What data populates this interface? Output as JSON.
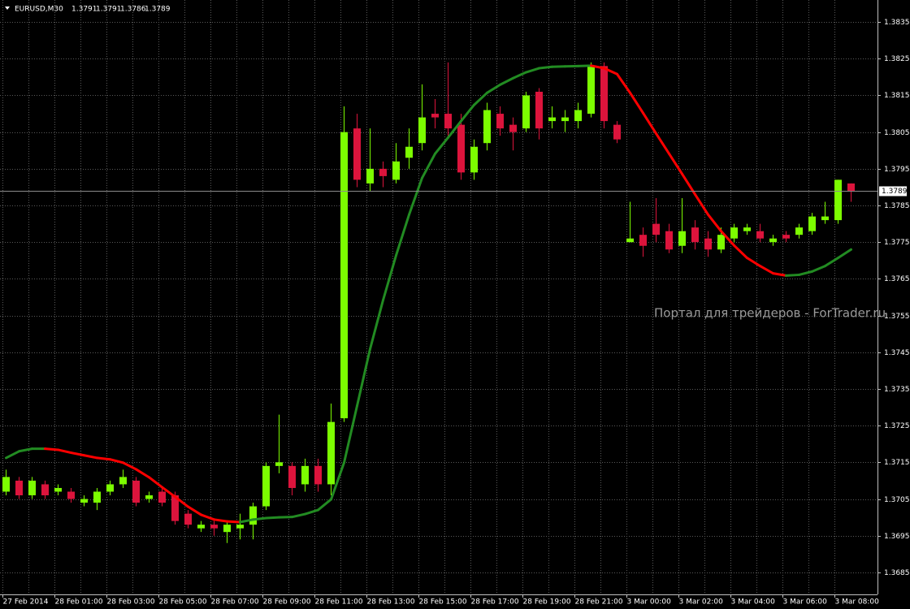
{
  "chart_data": {
    "type": "candlestick",
    "title": "EURUSD,M30",
    "categories": [
      "27 Feb 2014",
      null,
      null,
      null,
      "28 Feb 01:00",
      null,
      null,
      null,
      "28 Feb 03:00",
      null,
      null,
      null,
      "28 Feb 05:00",
      null,
      null,
      null,
      "28 Feb 07:00",
      null,
      null,
      null,
      "28 Feb 09:00",
      null,
      null,
      null,
      "28 Feb 11:00",
      null,
      null,
      null,
      "28 Feb 13:00",
      null,
      null,
      null,
      "28 Feb 15:00",
      null,
      null,
      null,
      "28 Feb 17:00",
      null,
      null,
      null,
      "28 Feb 19:00",
      null,
      null,
      null,
      "28 Feb 21:00",
      null,
      null,
      null,
      "3 Mar 00:00",
      null,
      null,
      null,
      "3 Mar 02:00",
      null,
      null,
      null,
      "3 Mar 04:00",
      null,
      null,
      null,
      "3 Mar 06:00",
      null,
      null,
      null,
      "3 Mar 08:00",
      null
    ],
    "open": [
      1.3707,
      1.371,
      1.3706,
      1.3709,
      1.3707,
      1.3707,
      1.3704,
      1.3704,
      1.3707,
      1.3709,
      1.371,
      1.3705,
      1.3707,
      1.3706,
      1.3701,
      1.3697,
      1.3698,
      1.3696,
      1.3697,
      1.3698,
      1.3703,
      1.3714,
      1.3714,
      1.3709,
      1.3714,
      1.3709,
      1.3727,
      1.3806,
      1.3791,
      1.3795,
      1.3792,
      1.3798,
      1.3802,
      1.381,
      1.381,
      1.3807,
      1.3794,
      1.3802,
      1.381,
      1.3807,
      1.3806,
      1.3816,
      1.3808,
      1.3808,
      1.3808,
      1.381,
      1.3823,
      1.3807,
      1.3775,
      1.3777,
      1.378,
      1.3778,
      1.3774,
      1.3779,
      1.3776,
      1.3773,
      1.3776,
      1.3778,
      1.3778,
      1.3775,
      1.3777,
      1.3777,
      1.3778,
      1.3781,
      1.3781,
      1.3791
    ],
    "high": [
      1.3713,
      1.3711,
      1.3711,
      1.371,
      1.3709,
      1.3708,
      1.3706,
      1.3708,
      1.371,
      1.3713,
      1.3711,
      1.3707,
      1.3708,
      1.3707,
      1.3702,
      1.3699,
      1.3699,
      1.3699,
      1.3701,
      1.3704,
      1.3715,
      1.3728,
      1.3715,
      1.3716,
      1.3716,
      1.3731,
      1.3812,
      1.381,
      1.3806,
      1.3797,
      1.3802,
      1.3806,
      1.3818,
      1.3814,
      1.3824,
      1.381,
      1.3803,
      1.3813,
      1.3812,
      1.3809,
      1.3816,
      1.3817,
      1.3812,
      1.3811,
      1.3813,
      1.3824,
      1.3824,
      1.3808,
      1.3786,
      1.3779,
      1.3787,
      1.378,
      1.3787,
      1.3781,
      1.3778,
      1.3779,
      1.378,
      1.378,
      1.378,
      1.3777,
      1.3778,
      1.378,
      1.3783,
      1.3786,
      1.3792,
      1.3791
    ],
    "low": [
      1.3706,
      1.3705,
      1.3705,
      1.3705,
      1.3706,
      1.3704,
      1.3703,
      1.3702,
      1.3706,
      1.3708,
      1.3703,
      1.3704,
      1.3703,
      1.3698,
      1.3697,
      1.3696,
      1.3695,
      1.3693,
      1.3694,
      1.3694,
      1.3702,
      1.3712,
      1.3706,
      1.3707,
      1.3707,
      1.3706,
      1.3726,
      1.379,
      1.3789,
      1.379,
      1.3791,
      1.3795,
      1.38,
      1.3806,
      1.3804,
      1.3792,
      1.3792,
      1.38,
      1.3804,
      1.38,
      1.3805,
      1.3803,
      1.3806,
      1.3805,
      1.3806,
      1.3809,
      1.3806,
      1.3802,
      1.3775,
      1.3771,
      1.3775,
      1.3772,
      1.3772,
      1.3773,
      1.3771,
      1.3772,
      1.3775,
      1.3777,
      1.3775,
      1.3774,
      1.3775,
      1.3776,
      1.3777,
      1.378,
      1.378,
      1.3786
    ],
    "close": [
      1.3711,
      1.3706,
      1.371,
      1.3706,
      1.3708,
      1.3705,
      1.3705,
      1.3707,
      1.3709,
      1.3711,
      1.3704,
      1.3706,
      1.3704,
      1.3699,
      1.3698,
      1.3698,
      1.3697,
      1.3698,
      1.3698,
      1.3703,
      1.3714,
      1.3715,
      1.3708,
      1.3714,
      1.3709,
      1.3726,
      1.3805,
      1.3792,
      1.3795,
      1.3793,
      1.3797,
      1.3801,
      1.3809,
      1.3809,
      1.3806,
      1.3794,
      1.3801,
      1.3811,
      1.3806,
      1.3805,
      1.3815,
      1.3806,
      1.3809,
      1.3809,
      1.3811,
      1.3823,
      1.3808,
      1.3803,
      1.3776,
      1.3774,
      1.3777,
      1.3773,
      1.3778,
      1.3775,
      1.3773,
      1.3777,
      1.3779,
      1.3779,
      1.3776,
      1.3776,
      1.3776,
      1.3779,
      1.3782,
      1.3782,
      1.3792,
      1.3789
    ],
    "bull_color": "#7cfc00",
    "bear_color": "#dc143c",
    "line": {
      "values": [
        1.37162,
        1.3718,
        1.37187,
        1.37187,
        1.37184,
        1.37176,
        1.37169,
        1.37162,
        1.37158,
        1.37149,
        1.37131,
        1.37109,
        1.37082,
        1.37056,
        1.37029,
        1.37007,
        1.36994,
        1.36989,
        1.36987,
        1.36994,
        1.36998,
        1.37,
        1.37001,
        1.37009,
        1.3702,
        1.37049,
        1.37149,
        1.37304,
        1.37459,
        1.37592,
        1.37714,
        1.37825,
        1.37925,
        1.37991,
        1.38035,
        1.3808,
        1.38124,
        1.38157,
        1.38179,
        1.38197,
        1.38213,
        1.38224,
        1.38228,
        1.38229,
        1.3823,
        1.38231,
        1.38224,
        1.38208,
        1.38157,
        1.38102,
        1.38046,
        1.37991,
        1.37936,
        1.3788,
        1.37825,
        1.3778,
        1.37741,
        1.37707,
        1.37685,
        1.37665,
        1.37659,
        1.37661,
        1.3767,
        1.37685,
        1.37707,
        1.3773
      ],
      "up_color": "#228b22",
      "down_color": "#ff0000"
    },
    "ylim": [
      1.3679,
      1.3841
    ],
    "yticks": [
      1.3835,
      1.3825,
      1.3815,
      1.3805,
      1.3795,
      1.3785,
      1.3775,
      1.3765,
      1.3755,
      1.3745,
      1.3735,
      1.3725,
      1.3715,
      1.3705,
      1.3695,
      1.3685
    ],
    "grid": true,
    "annotation": "Портал для трейдеров - ForTrader.ru"
  }
}
